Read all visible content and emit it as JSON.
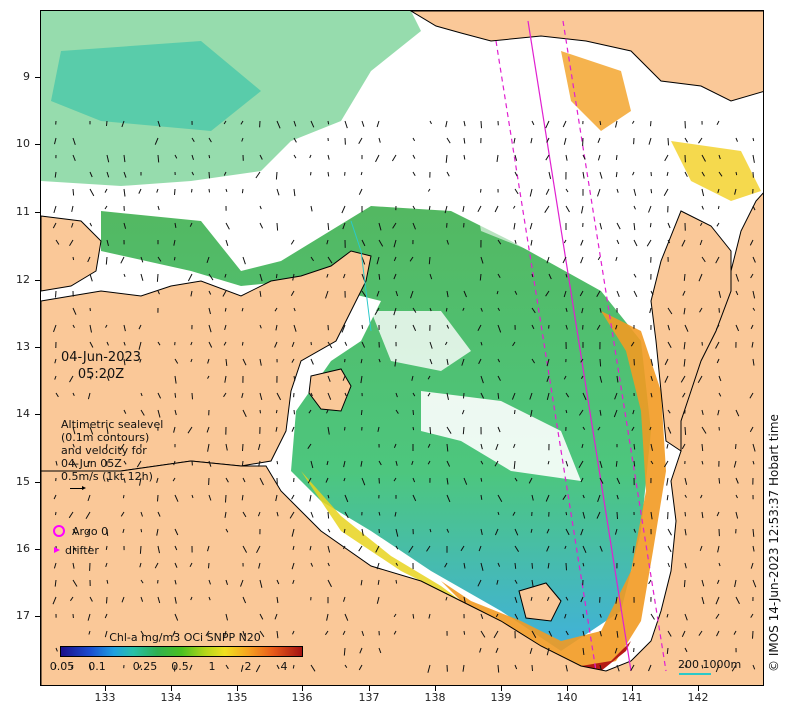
{
  "map": {
    "date": "04-Jun-2023",
    "time": "05:20Z",
    "legend": {
      "altimetry_lines": [
        "Altimetric sealevel",
        "(0.1m contours)",
        "and velocity for",
        "04-Jun 05Z",
        "0.5m/s (1kt 12h)"
      ],
      "argo_label": "Argo 0",
      "drifter_label": "drifter",
      "argo_color": "#ff00ff",
      "drifter_color": "#ff00ff"
    },
    "colorbar": {
      "title": "Chl-a mg/m3 OCi SNPP N20",
      "ticks": [
        "0.05",
        "0.1",
        "0.25",
        "0.5",
        "1",
        "2",
        "4"
      ]
    },
    "scale": {
      "label": "200  1000m",
      "color": "#2ac9c9"
    },
    "credit": "© IMOS 14-Jun-2023 12:53:37 Hobart time",
    "lat_ticks": [
      "9",
      "10",
      "11",
      "12",
      "13",
      "14",
      "15",
      "16",
      "17"
    ],
    "lon_ticks": [
      "133",
      "134",
      "135",
      "136",
      "137",
      "138",
      "139",
      "140",
      "141",
      "142"
    ],
    "colors": {
      "land": "#fac898",
      "chlorophyll_low": "#1fa0e0",
      "chlorophyll_mid": "#30b050",
      "chlorophyll_high": "#a31212",
      "track_lines": "#e020d0"
    }
  }
}
